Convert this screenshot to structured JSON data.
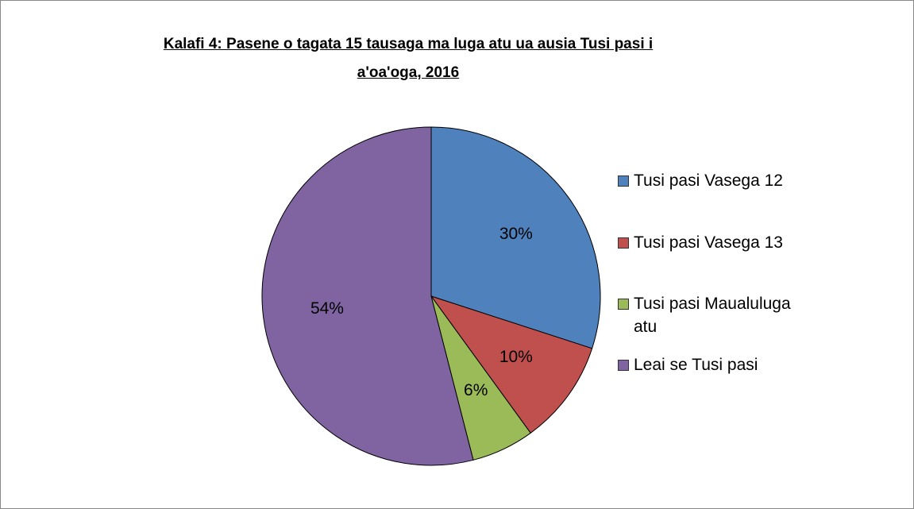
{
  "chart_data": {
    "type": "pie",
    "title": "Kalafi 4: Pasene o tagata 15 tausaga ma luga atu ua ausia Tusi pasi i a'oa'oga, 2016",
    "categories": [
      "Tusi pasi Vasega 12",
      "Tusi pasi Vasega 13",
      "Tusi pasi Maualuluga atu",
      "Leai se Tusi pasi"
    ],
    "values": [
      30,
      10,
      6,
      54
    ],
    "value_labels": [
      "30%",
      "10%",
      "6%",
      "54%"
    ],
    "colors": [
      "#4f81bd",
      "#c0504d",
      "#9bbb59",
      "#8064a2"
    ],
    "legend": "right"
  }
}
